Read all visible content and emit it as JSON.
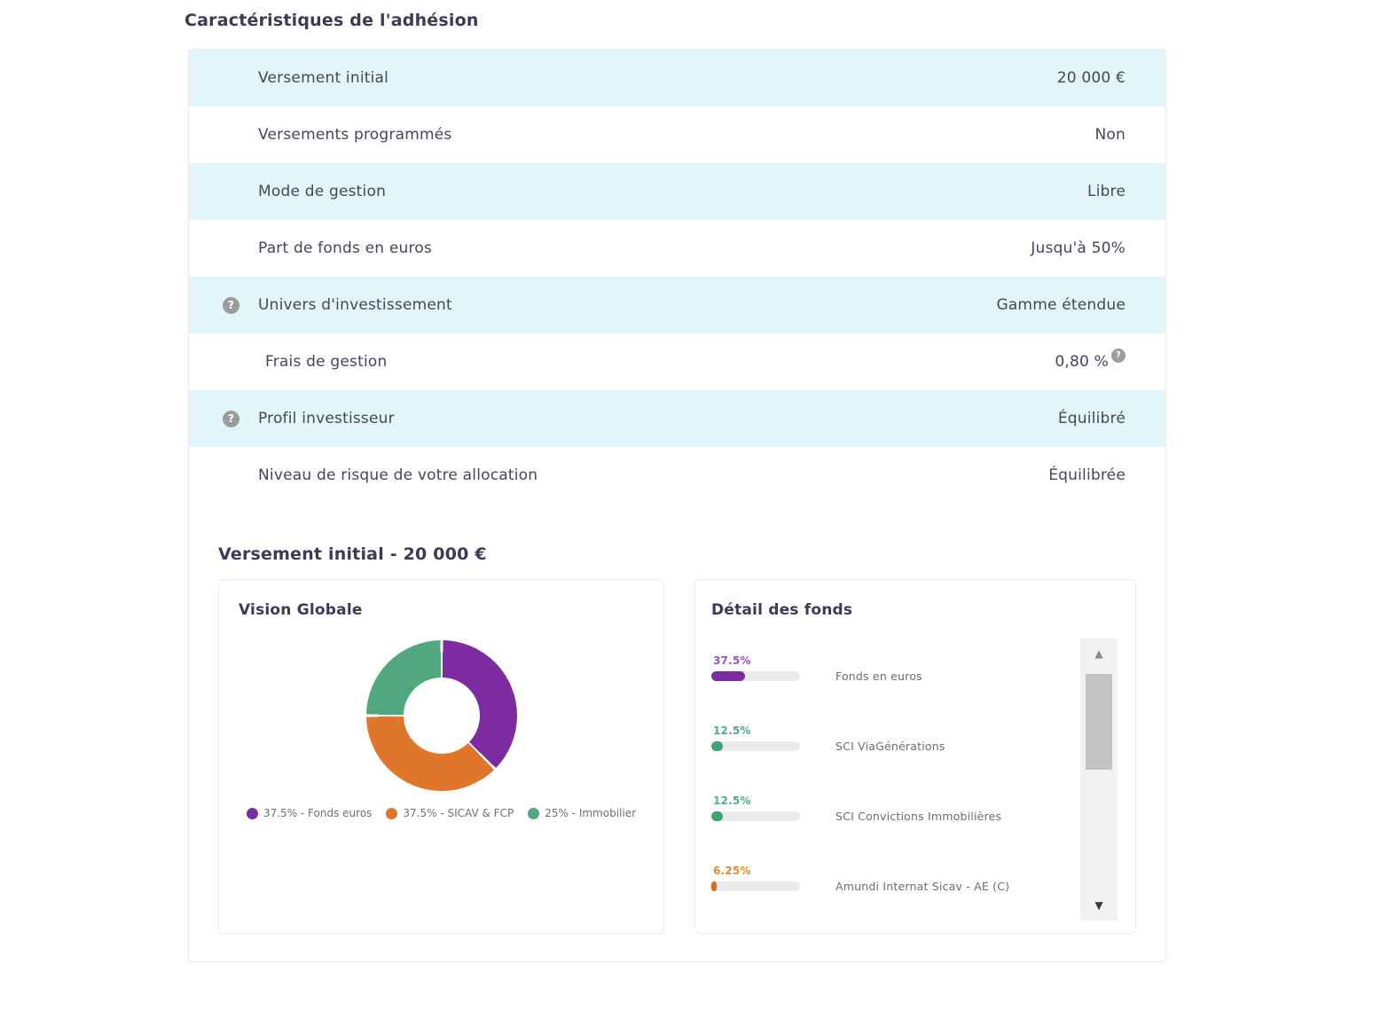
{
  "page_title": "Caractéristiques de l'adhésion",
  "icons": {
    "info": "?",
    "scroll_up": "▲",
    "scroll_down": "▼"
  },
  "colors": {
    "row_highlight": "#e2f6f9",
    "purple": "#7c2ba0",
    "orange": "#e0762b",
    "green": "#52a87e",
    "text": "#45455e"
  },
  "table": {
    "rows": [
      {
        "label": "Versement initial",
        "value": "20 000 €"
      },
      {
        "label": "Versements programmés",
        "value": "Non"
      },
      {
        "label": "Mode de gestion",
        "value": "Libre"
      },
      {
        "label": "Part de fonds en euros",
        "value": "Jusqu'à 50%"
      },
      {
        "label": "Univers d'investissement",
        "value": "Gamme étendue"
      },
      {
        "label": "Frais de gestion",
        "value": "0,80 %"
      },
      {
        "label": "Profil investisseur",
        "value": "Équilibré"
      },
      {
        "label": "Niveau de risque de votre allocation",
        "value": "Équilibrée"
      }
    ]
  },
  "section_title": "Versement initial - 20 000 €",
  "vision_globale": {
    "title": "Vision Globale",
    "legend": [
      {
        "label": "37.5% - Fonds euros",
        "color": "#7c2ba0"
      },
      {
        "label": "37.5% - SICAV & FCP",
        "color": "#e0762b"
      },
      {
        "label": "25% - Immobilier",
        "color": "#52a87e"
      }
    ]
  },
  "detail_fonds": {
    "title": "Détail des fonds",
    "funds": [
      {
        "pct": "37.5%",
        "value": 37.5,
        "name": "Fonds en euros",
        "label_color": "#9b50c4",
        "bar_color": "#7c2ba0"
      },
      {
        "pct": "12.5%",
        "value": 12.5,
        "name": "SCI ViaGénérations",
        "label_color": "#4fae85",
        "bar_color": "#3da478"
      },
      {
        "pct": "12.5%",
        "value": 12.5,
        "name": "SCI Convictions Immobilières",
        "label_color": "#4fae85",
        "bar_color": "#3da478"
      },
      {
        "pct": "6.25%",
        "value": 6.25,
        "name": "Amundi Internat Sicav - AE (C)",
        "label_color": "#e8872f",
        "bar_color": "#e06a17"
      }
    ]
  },
  "chart_data": {
    "type": "pie",
    "title": "Vision Globale",
    "categories": [
      "Fonds euros",
      "SICAV & FCP",
      "Immobilier"
    ],
    "values": [
      37.5,
      37.5,
      25
    ],
    "colors": [
      "#7c2ba0",
      "#e0762b",
      "#52a87e"
    ],
    "donut_hole_ratio": 0.5,
    "start_angle_deg": 0,
    "legend_position": "bottom"
  }
}
